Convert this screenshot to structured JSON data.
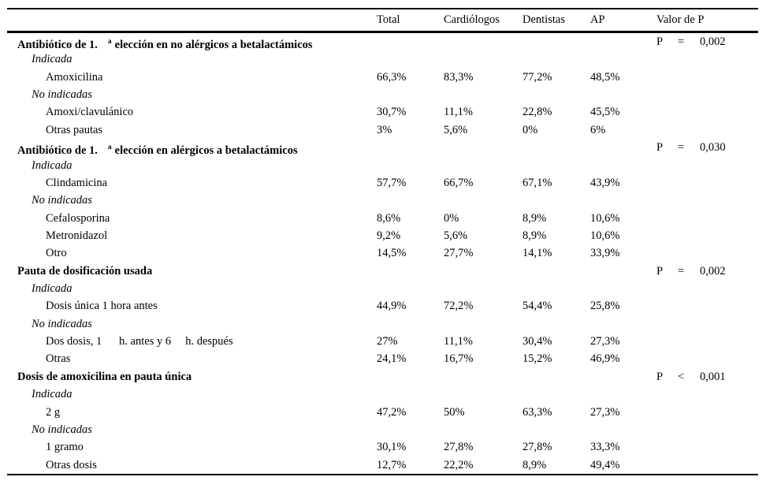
{
  "header": {
    "columns": [
      "Total",
      "Cardiólogos",
      "Dentistas",
      "AP",
      "Valor de P"
    ]
  },
  "rows": [
    {
      "type": "section",
      "prefix": "Antibiótico de 1.",
      "sup": "a",
      "rest": "elección en no alérgicos a betalactámicos",
      "p": {
        "label": "P",
        "op": "=",
        "value": "0,002"
      }
    },
    {
      "type": "sub",
      "label": "Indicada"
    },
    {
      "type": "item",
      "label": "Amoxicilina",
      "values": [
        "66,3%",
        "83,3%",
        "77,2%",
        "48,5%"
      ]
    },
    {
      "type": "sub",
      "label": "No indicadas"
    },
    {
      "type": "item",
      "label": "Amoxi/clavulánico",
      "values": [
        "30,7%",
        "11,1%",
        "22,8%",
        "45,5%"
      ]
    },
    {
      "type": "item",
      "label": "Otras pautas",
      "values": [
        "3%",
        "5,6%",
        "0%",
        "6%"
      ]
    },
    {
      "type": "section",
      "prefix": "Antibiótico de 1.",
      "sup": "a",
      "rest": "elección en alérgicos a betalactámicos",
      "p": {
        "label": "P",
        "op": "=",
        "value": "0,030"
      }
    },
    {
      "type": "sub",
      "label": "Indicada"
    },
    {
      "type": "item",
      "label": "Clindamicina",
      "values": [
        "57,7%",
        "66,7%",
        "67,1%",
        "43,9%"
      ]
    },
    {
      "type": "sub",
      "label": "No indicadas"
    },
    {
      "type": "item",
      "label": "Cefalosporina",
      "values": [
        "8,6%",
        "0%",
        "8,9%",
        "10,6%"
      ]
    },
    {
      "type": "item",
      "label": "Metronidazol",
      "values": [
        "9,2%",
        "5,6%",
        "8,9%",
        "10,6%"
      ]
    },
    {
      "type": "item",
      "label": "Otro",
      "values": [
        "14,5%",
        "27,7%",
        "14,1%",
        "33,9%"
      ]
    },
    {
      "type": "section",
      "prefix": "Pauta de dosificación usada",
      "sup": "",
      "rest": "",
      "p": {
        "label": "P",
        "op": "=",
        "value": "0,002"
      }
    },
    {
      "type": "sub",
      "label": "Indicada"
    },
    {
      "type": "item",
      "label": "Dosis única 1 hora antes",
      "values": [
        "44,9%",
        "72,2%",
        "54,4%",
        "25,8%"
      ]
    },
    {
      "type": "sub",
      "label": "No indicadas"
    },
    {
      "type": "item",
      "label": "Dos dosis, 1      h. antes y 6     h. después",
      "values": [
        "27%",
        "11,1%",
        "30,4%",
        "27,3%"
      ]
    },
    {
      "type": "item",
      "label": "Otras",
      "values": [
        "24,1%",
        "16,7%",
        "15,2%",
        "46,9%"
      ]
    },
    {
      "type": "section",
      "prefix": "Dosis de amoxicilina en pauta única",
      "sup": "",
      "rest": "",
      "p": {
        "label": "P",
        "op": "<",
        "value": "0,001"
      }
    },
    {
      "type": "sub",
      "label": "Indicada"
    },
    {
      "type": "item",
      "label": "2 g",
      "values": [
        "47,2%",
        "50%",
        "63,3%",
        "27,3%"
      ]
    },
    {
      "type": "sub",
      "label": "No indicadas"
    },
    {
      "type": "item",
      "label": "1 gramo",
      "values": [
        "30,1%",
        "27,8%",
        "27,8%",
        "33,3%"
      ]
    },
    {
      "type": "item",
      "label": "Otras dosis",
      "values": [
        "12,7%",
        "22,2%",
        "8,9%",
        "49,4%"
      ]
    }
  ]
}
